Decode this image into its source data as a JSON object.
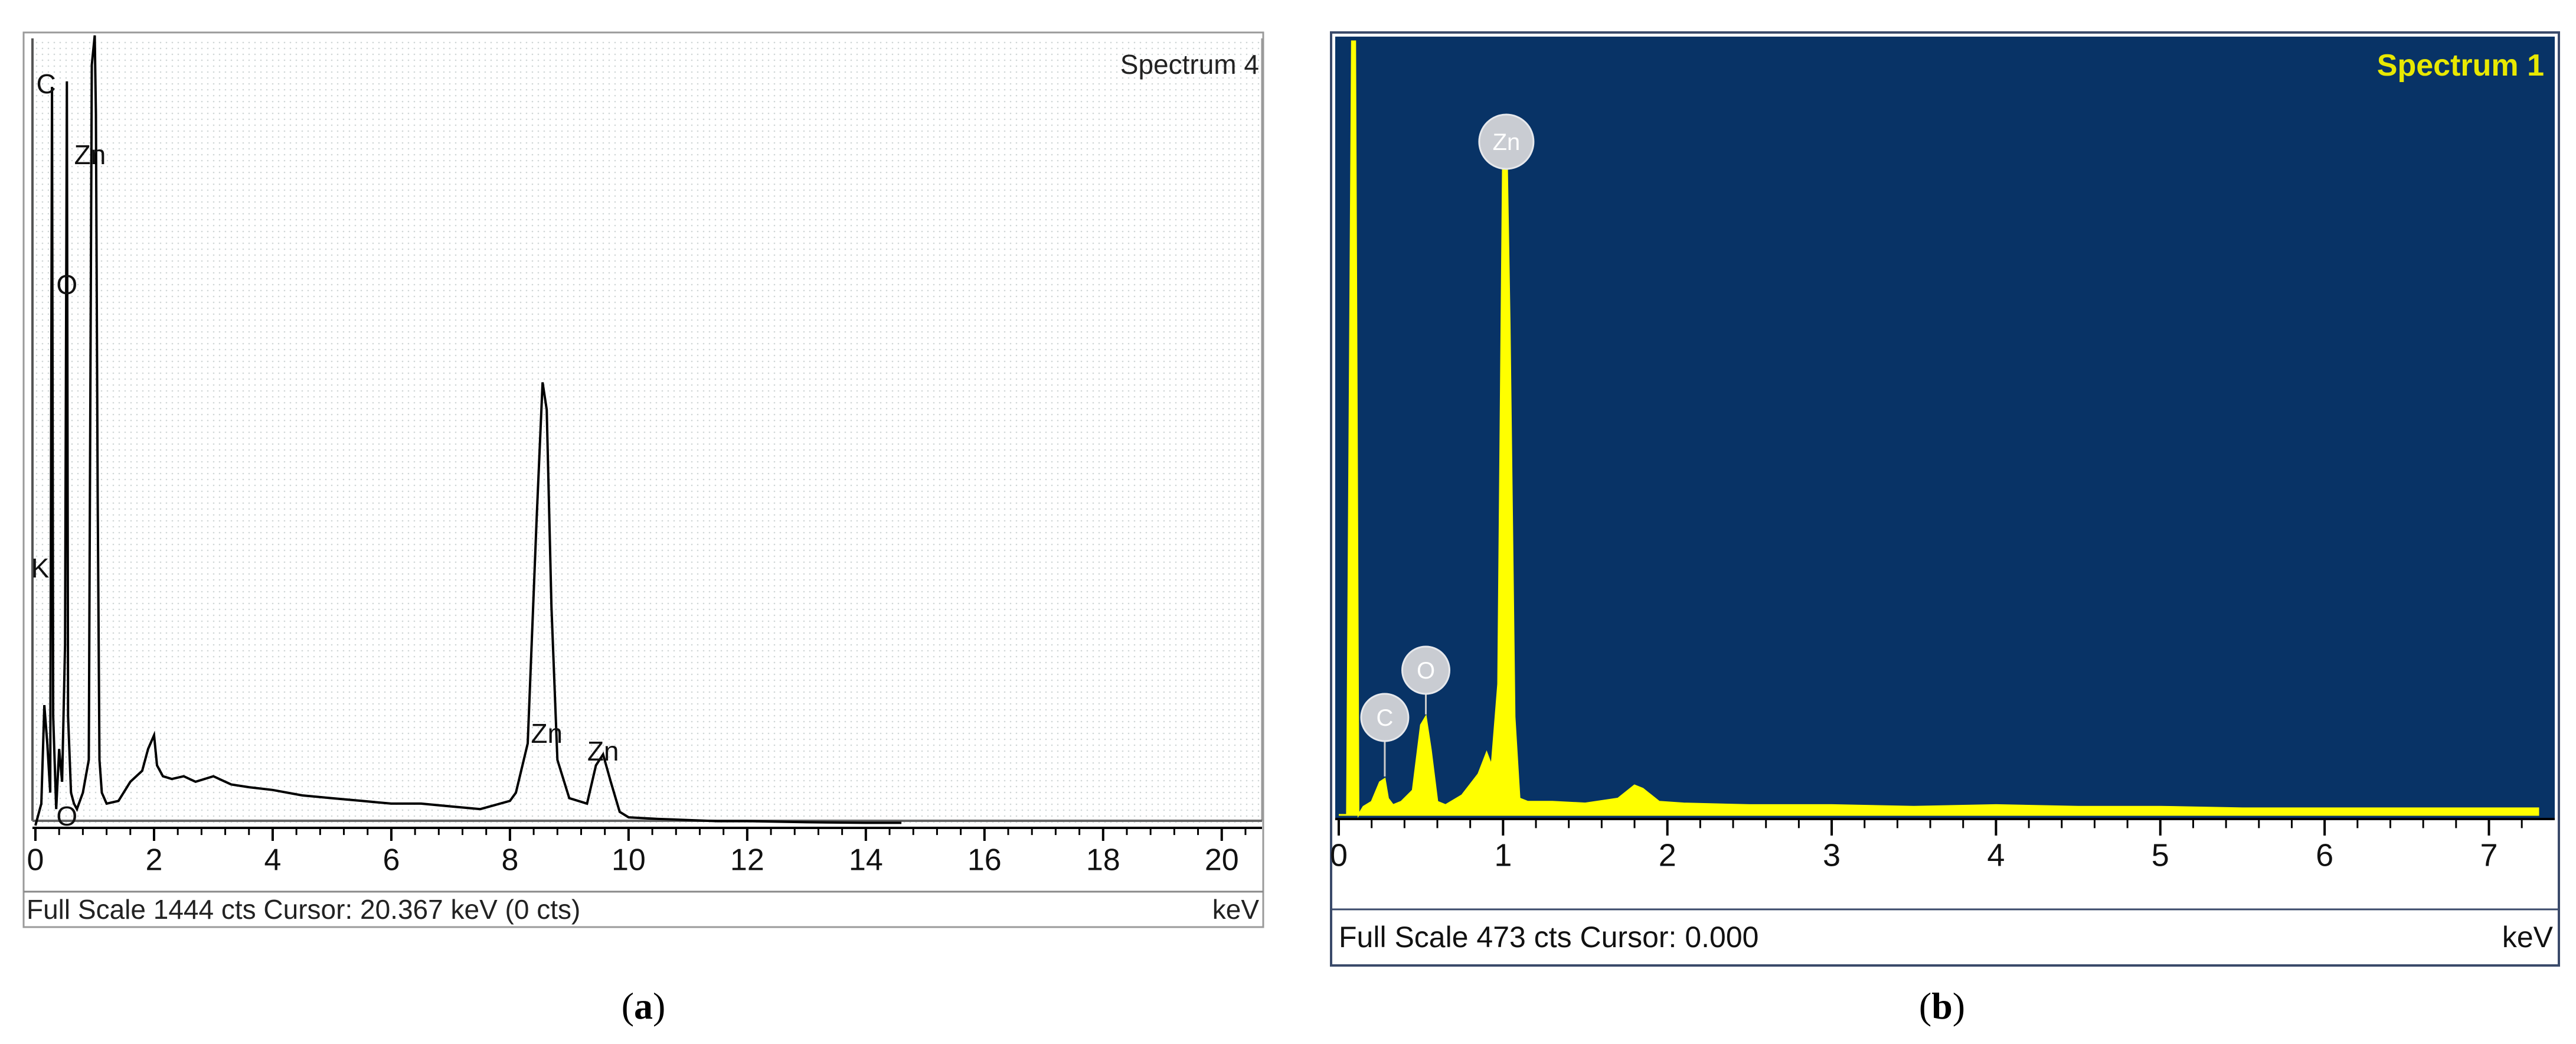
{
  "chart_data": [
    {
      "type": "line",
      "spectrum_label": "Spectrum 4",
      "panel_caption": "(a)",
      "panel_letter": "a",
      "footer_text": "Full Scale 1444 cts  Cursor: 20.367 keV (0 cts)",
      "xlabel": "keV",
      "xlim": [
        0,
        20.5
      ],
      "ylim": [
        0,
        1444
      ],
      "x_ticks": [
        0,
        2,
        4,
        6,
        8,
        10,
        12,
        14,
        16,
        18,
        20
      ],
      "background": "#ffffff",
      "line_color": "#000000",
      "series": [
        {
          "x": [
            0.0,
            0.1,
            0.15,
            0.2,
            0.25,
            0.28,
            0.3,
            0.35,
            0.4,
            0.45,
            0.5,
            0.53,
            0.55,
            0.6,
            0.65,
            0.7,
            0.8,
            0.9,
            0.95,
            1.0,
            1.02,
            1.05,
            1.08,
            1.12,
            1.2,
            1.4,
            1.6,
            1.8,
            1.9,
            2.0,
            2.05,
            2.15,
            2.3,
            2.5,
            2.7,
            3.0,
            3.3,
            3.6,
            4.0,
            4.5,
            5.0,
            5.5,
            6.0,
            6.5,
            7.0,
            7.5,
            8.0,
            8.1,
            8.3,
            8.45,
            8.55,
            8.62,
            8.7,
            8.8,
            9.0,
            9.3,
            9.45,
            9.57,
            9.7,
            9.85,
            10.0,
            10.5,
            11.0,
            11.5,
            12.0,
            13.0,
            14.0,
            14.6
          ],
          "y": [
            0,
            40,
            220,
            150,
            60,
            1350,
            200,
            30,
            140,
            80,
            330,
            1360,
            200,
            60,
            40,
            30,
            60,
            120,
            1390,
            1444,
            1300,
            600,
            120,
            60,
            40,
            45,
            80,
            100,
            140,
            165,
            110,
            90,
            85,
            90,
            80,
            90,
            75,
            70,
            65,
            55,
            50,
            45,
            40,
            40,
            35,
            30,
            45,
            60,
            150,
            560,
            810,
            760,
            400,
            120,
            50,
            40,
            110,
            130,
            80,
            25,
            15,
            12,
            10,
            8,
            8,
            6,
            5,
            5
          ]
        }
      ],
      "peaks": [
        {
          "label": "C",
          "x": 0.28
        },
        {
          "label": "O",
          "x": 0.53
        },
        {
          "label": "O",
          "x": 0.53
        },
        {
          "label": "K",
          "x": 0.3
        },
        {
          "label": "Zn",
          "x": 1.0
        },
        {
          "label": "Zn",
          "x": 8.62
        },
        {
          "label": "Zn",
          "x": 9.57
        }
      ]
    },
    {
      "type": "area",
      "spectrum_label": "Spectrum 1",
      "panel_caption": "(b)",
      "panel_letter": "b",
      "footer_text": "Full Scale 473 cts Cursor: 0.000",
      "xlabel": "keV",
      "xlim": [
        0,
        7.3
      ],
      "ylim": [
        0,
        473
      ],
      "x_ticks": [
        0,
        1,
        2,
        3,
        4,
        5,
        6,
        7
      ],
      "background": "#083366",
      "line_color": "#ffff00",
      "series": [
        {
          "x": [
            0.0,
            0.05,
            0.08,
            0.1,
            0.12,
            0.15,
            0.2,
            0.25,
            0.28,
            0.3,
            0.33,
            0.38,
            0.45,
            0.5,
            0.53,
            0.56,
            0.6,
            0.65,
            0.75,
            0.85,
            0.9,
            0.93,
            0.97,
            1.0,
            1.02,
            1.04,
            1.07,
            1.1,
            1.15,
            1.3,
            1.5,
            1.7,
            1.8,
            1.85,
            1.95,
            2.1,
            2.5,
            3.0,
            3.5,
            4.0,
            4.5,
            5.0,
            5.5,
            6.0,
            6.5,
            7.0,
            7.3
          ],
          "y": [
            0,
            0,
            473,
            473,
            0,
            5,
            8,
            20,
            22,
            10,
            6,
            8,
            15,
            55,
            60,
            40,
            8,
            6,
            12,
            25,
            38,
            30,
            80,
            410,
            420,
            300,
            60,
            10,
            8,
            8,
            7,
            10,
            18,
            16,
            8,
            7,
            6,
            6,
            5,
            6,
            5,
            5,
            4,
            4,
            4,
            4,
            4
          ]
        }
      ],
      "peaks": [
        {
          "label": "C",
          "x": 0.28
        },
        {
          "label": "O",
          "x": 0.53
        },
        {
          "label": "Zn",
          "x": 1.02
        }
      ]
    }
  ]
}
